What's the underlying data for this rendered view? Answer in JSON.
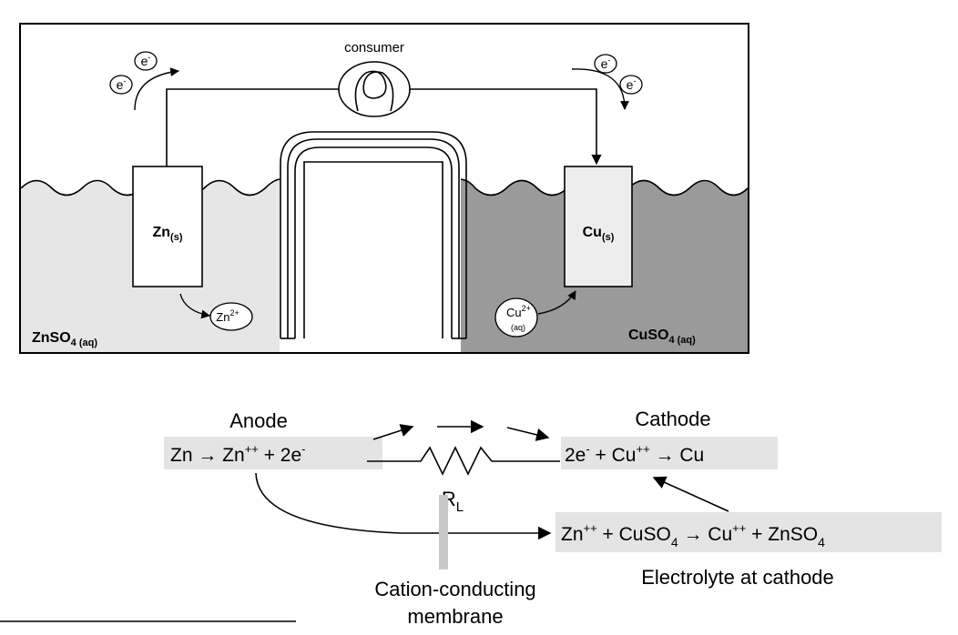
{
  "cell": {
    "consumer_label": "consumer",
    "electron_symbol": "e",
    "electron_charge": "-",
    "anode_electrode": {
      "base": "Zn",
      "sub": "(s)"
    },
    "cathode_electrode": {
      "base": "Cu",
      "sub": "(s)"
    },
    "anode_ion": {
      "base": "Zn",
      "sup": "2+"
    },
    "cathode_ion": {
      "base": "Cu",
      "sup": "2+",
      "sub": "(aq)"
    },
    "left_solution": {
      "base": "ZnSO",
      "sub": "4 (aq)"
    },
    "right_solution": {
      "base": "CuSO",
      "sub": "4 (aq)"
    },
    "colors": {
      "left_electrolyte": "#e6e6e6",
      "right_electrolyte": "#9a9a9a",
      "cathode_electrode_fill": "#ededed"
    }
  },
  "reaction": {
    "anode_title": "Anode",
    "cathode_title": "Cathode",
    "anode_equation": {
      "part1": "Zn → Zn",
      "sup1": "++",
      "part2": " + 2e",
      "sup2": "-"
    },
    "cathode_equation": {
      "part1": "2e",
      "sup1": "-",
      "part2": " + Cu",
      "sup2": "++",
      "part3": " → Cu"
    },
    "resistor_label": {
      "base": "R",
      "sub": "L"
    },
    "electrolyte_equation": {
      "p1": "Zn",
      "s1": "++",
      "p2": " + CuSO",
      "b1": "4",
      "p3": " → Cu",
      "s2": "++",
      "p4": " + ZnSO",
      "b2": "4"
    },
    "electrolyte_caption": "Electrolyte at cathode",
    "membrane_line1": "Cation-conducting",
    "membrane_line2": "membrane",
    "colors": {
      "equation_box": "#e4e4e4",
      "membrane": "#c8c8c8"
    }
  }
}
